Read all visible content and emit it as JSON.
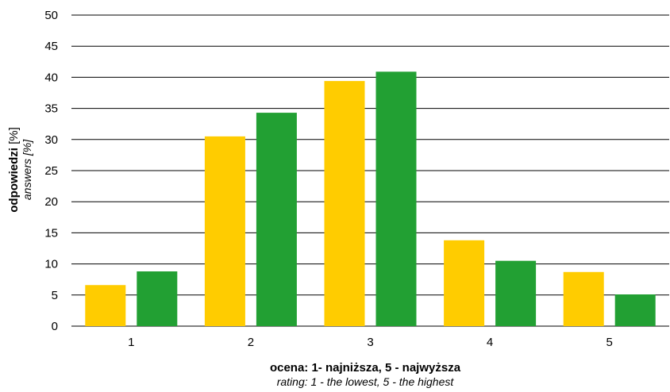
{
  "chart_data": {
    "type": "bar",
    "categories": [
      "1",
      "2",
      "3",
      "4",
      "5"
    ],
    "series": [
      {
        "color": "#FFCC00",
        "values": [
          6.6,
          30.5,
          39.4,
          13.8,
          8.7
        ]
      },
      {
        "color": "#22A033",
        "values": [
          8.8,
          34.3,
          40.9,
          10.5,
          5.1
        ]
      }
    ],
    "ylim": [
      0,
      50
    ],
    "yticks": [
      0,
      5,
      10,
      15,
      20,
      25,
      30,
      35,
      40,
      45,
      50
    ],
    "grid": true,
    "xlabel": {
      "main": "ocena: 1- najniższa, 5 - najwyższa",
      "sub": "rating: 1 - the lowest, 5 - the highest"
    },
    "ylabel": {
      "bold": "odpowiedzi",
      "unit": " [%]",
      "sub": "answers [%]"
    }
  }
}
